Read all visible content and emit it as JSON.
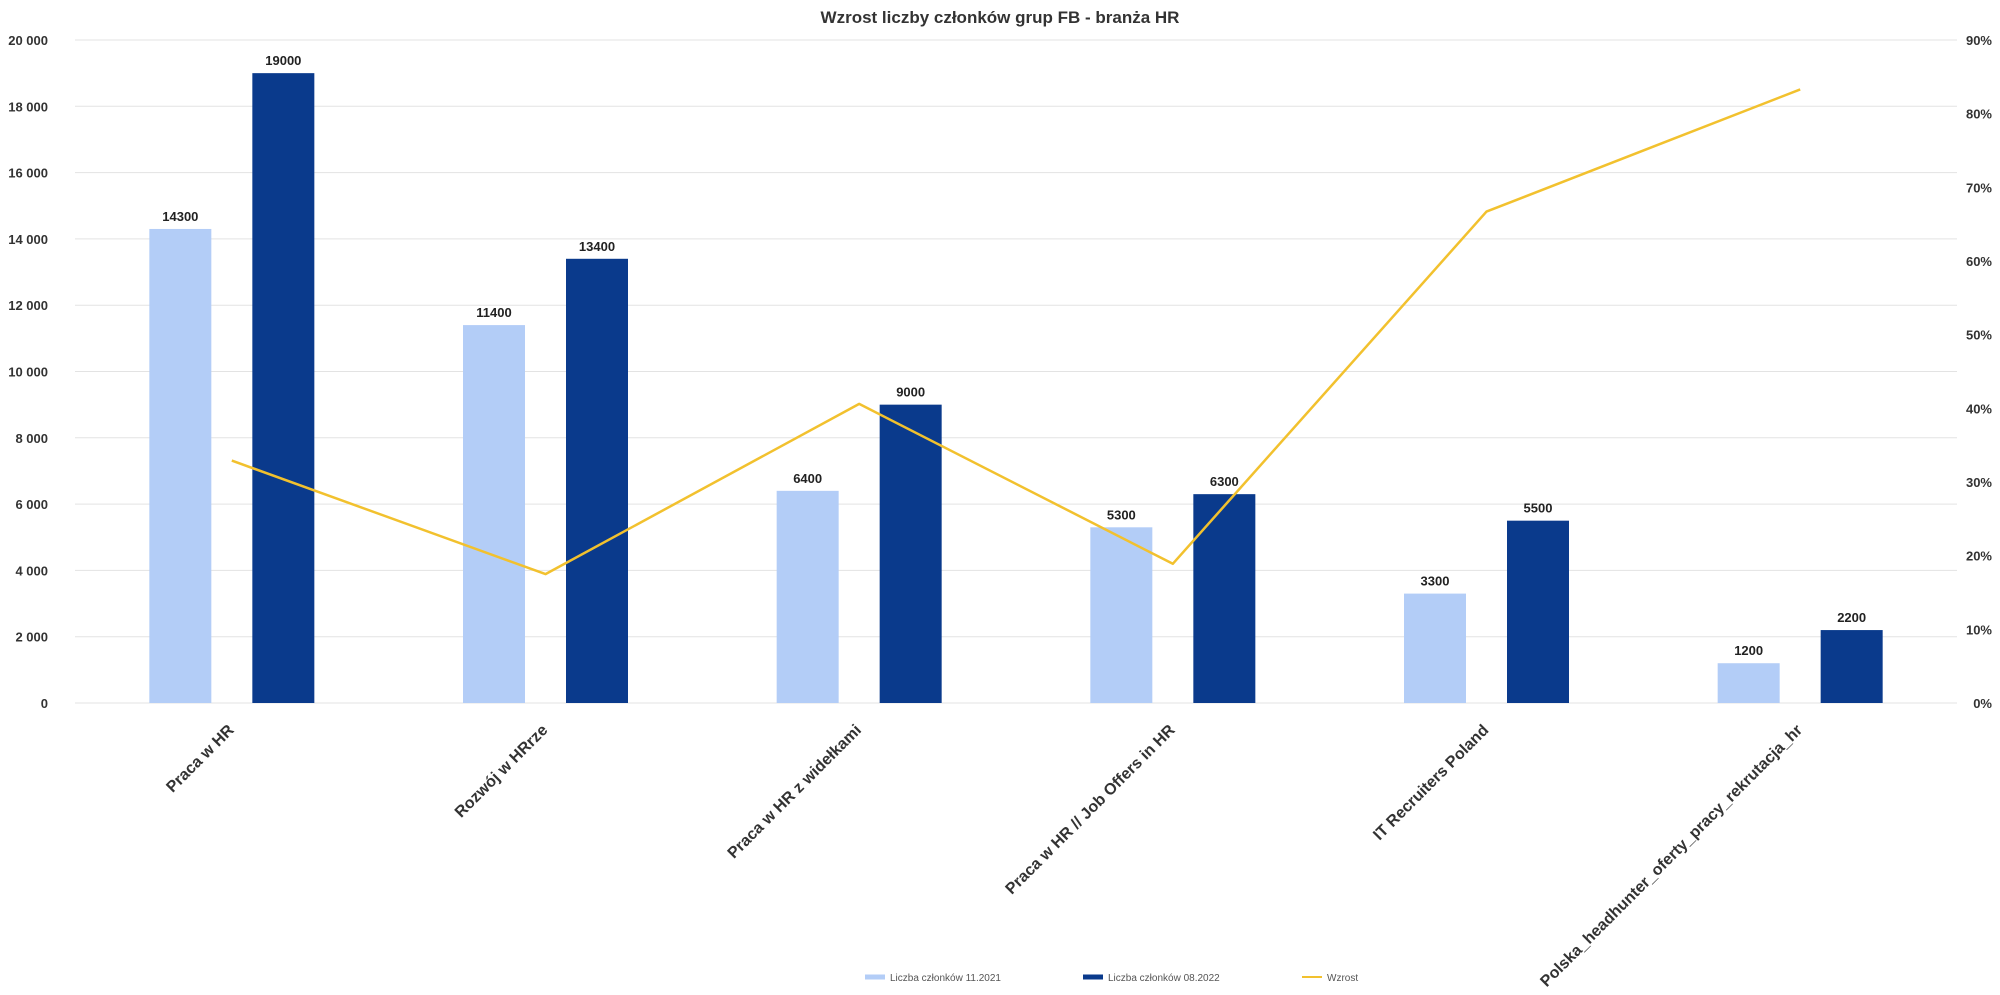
{
  "chart_data": {
    "type": "bar",
    "title": "Wzrost liczby członków grup FB - branża HR",
    "categories": [
      "Praca w HR",
      "Rozwój w HRrze",
      "Praca w HR z widełkami",
      "Praca w HR // Job Offers in HR",
      "IT Recruiters Poland",
      "Polska_headhunter_oferty_pracy_rekrutacja_hr"
    ],
    "series": [
      {
        "name": "Liczba członków 11.2021",
        "kind": "bar",
        "axis": "left",
        "color": "#b3cdf7",
        "values": [
          14300,
          11400,
          6400,
          5300,
          3300,
          1200
        ],
        "labels": [
          "14300",
          "11400",
          "6400",
          "5300",
          "3300",
          "1200"
        ]
      },
      {
        "name": "Liczba członków 08.2022",
        "kind": "bar",
        "axis": "left",
        "color": "#0a3a8c",
        "values": [
          19000,
          13400,
          9000,
          6300,
          5500,
          2200
        ],
        "labels": [
          "19000",
          "13400",
          "9000",
          "6300",
          "5500",
          "2200"
        ]
      },
      {
        "name": "Wzrost",
        "kind": "line",
        "axis": "right",
        "color": "#f2c12e",
        "values": [
          32.9,
          17.5,
          40.6,
          18.9,
          66.7,
          83.3
        ]
      }
    ],
    "ylim": [
      0,
      20000
    ],
    "y_ticks": [
      0,
      2000,
      4000,
      6000,
      8000,
      10000,
      12000,
      14000,
      16000,
      18000,
      20000
    ],
    "y_tick_labels": [
      "0",
      "2 000",
      "4 000",
      "6 000",
      "8 000",
      "10 000",
      "12 000",
      "14 000",
      "16 000",
      "18 000",
      "20 000"
    ],
    "y2lim": [
      0,
      90
    ],
    "y2_ticks": [
      0,
      10,
      20,
      30,
      40,
      50,
      60,
      70,
      80,
      90
    ],
    "y2_tick_labels": [
      "0%",
      "10%",
      "20%",
      "30%",
      "40%",
      "50%",
      "60%",
      "70%",
      "80%",
      "90%"
    ],
    "grid": true,
    "legend_position": "bottom-center"
  }
}
